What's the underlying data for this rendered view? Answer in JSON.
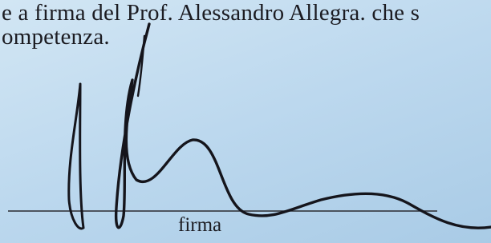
{
  "document": {
    "lines": [
      "e a firma del Prof. Alessandro Allegra. che s",
      "ompetenza."
    ],
    "caption": "firma"
  }
}
